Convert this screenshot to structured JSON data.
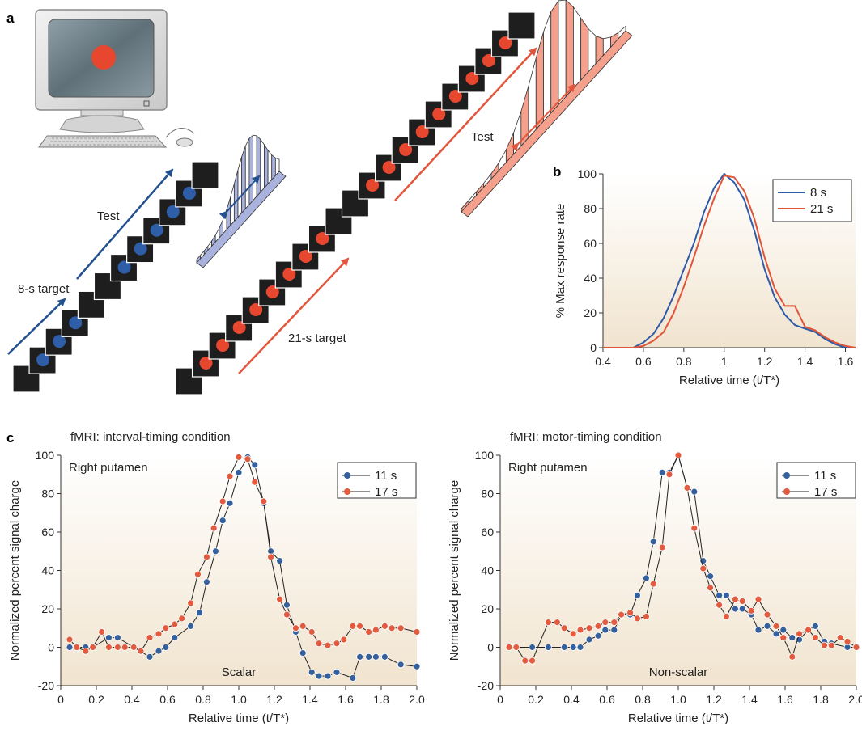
{
  "panels": {
    "a_letter": "a",
    "b_letter": "b",
    "c_letter": "c"
  },
  "schematic": {
    "left": {
      "label_test": "Test",
      "label_target": "8-s target",
      "dot_color": "#2f5ea8",
      "arrow_color": "#23508f",
      "curve_fill": "#a9b3dd",
      "curve_ticks": [
        "4",
        "6",
        "8",
        "10",
        "12"
      ],
      "screens": 12
    },
    "right": {
      "label_test": "Test",
      "label_target": "21-s target",
      "dot_color": "#e8472f",
      "arrow_color": "#e1563c",
      "curve_fill": "#f4a08c",
      "curve_ticks": [
        "11",
        "16",
        "21",
        "26",
        "31"
      ],
      "screens": 21
    },
    "monitor_dot_color": "#e8472f"
  },
  "chart_b": {
    "type": "line",
    "xlabel": "Relative time (t/T*)",
    "ylabel": "% Max response rate",
    "xlim": [
      0.4,
      1.65
    ],
    "ylim": [
      0,
      100
    ],
    "xticks": [
      "0.4",
      "0.6",
      "0.8",
      "1",
      "1.2",
      "1.4",
      "1.6"
    ],
    "yticks": [
      "0",
      "20",
      "40",
      "60",
      "80",
      "100"
    ],
    "legend_position": "top-right",
    "series": [
      {
        "name": "8 s",
        "color": "#2f5aa6",
        "points": [
          [
            0.4,
            0
          ],
          [
            0.55,
            0
          ],
          [
            0.6,
            3
          ],
          [
            0.65,
            8
          ],
          [
            0.7,
            17
          ],
          [
            0.75,
            30
          ],
          [
            0.8,
            45
          ],
          [
            0.85,
            60
          ],
          [
            0.9,
            78
          ],
          [
            0.95,
            92
          ],
          [
            1.0,
            100
          ],
          [
            1.05,
            95
          ],
          [
            1.1,
            85
          ],
          [
            1.15,
            67
          ],
          [
            1.2,
            45
          ],
          [
            1.25,
            29
          ],
          [
            1.3,
            19
          ],
          [
            1.35,
            13
          ],
          [
            1.4,
            11
          ],
          [
            1.45,
            9
          ],
          [
            1.5,
            5
          ],
          [
            1.55,
            2
          ],
          [
            1.6,
            0
          ],
          [
            1.65,
            0
          ]
        ]
      },
      {
        "name": "21 s",
        "color": "#e0553a",
        "points": [
          [
            0.4,
            0
          ],
          [
            0.55,
            0
          ],
          [
            0.6,
            1
          ],
          [
            0.65,
            4
          ],
          [
            0.7,
            9
          ],
          [
            0.75,
            20
          ],
          [
            0.8,
            35
          ],
          [
            0.85,
            52
          ],
          [
            0.9,
            70
          ],
          [
            0.95,
            86
          ],
          [
            1.0,
            99
          ],
          [
            1.05,
            98
          ],
          [
            1.1,
            90
          ],
          [
            1.15,
            74
          ],
          [
            1.2,
            52
          ],
          [
            1.25,
            34
          ],
          [
            1.3,
            24
          ],
          [
            1.35,
            24
          ],
          [
            1.4,
            12
          ],
          [
            1.45,
            10
          ],
          [
            1.5,
            6
          ],
          [
            1.55,
            3
          ],
          [
            1.6,
            1
          ],
          [
            1.65,
            0
          ]
        ]
      }
    ]
  },
  "chart_c": [
    {
      "type": "line",
      "title": "fMRI: interval-timing condition",
      "corner_label": "Right putamen",
      "bottom_label": "Scalar",
      "xlabel": "Relative time (t/T*)",
      "ylabel": "Normalized percent signal charge",
      "xlim": [
        0,
        2.0
      ],
      "ylim": [
        -20,
        100
      ],
      "xticks": [
        "0",
        "0.2",
        "0.4",
        "0.6",
        "0.8",
        "1.0",
        "1.2",
        "1.4",
        "1.6",
        "1.8",
        "2.0"
      ],
      "yticks": [
        "-20",
        "0",
        "20",
        "40",
        "60",
        "80",
        "100"
      ],
      "legend_position": "top-right",
      "series": [
        {
          "name": "11 s",
          "color": "#35609e",
          "points": [
            [
              0.05,
              0
            ],
            [
              0.09,
              0
            ],
            [
              0.14,
              0
            ],
            [
              0.18,
              0
            ],
            [
              0.27,
              5
            ],
            [
              0.32,
              5
            ],
            [
              0.41,
              0
            ],
            [
              0.5,
              -5
            ],
            [
              0.55,
              -2
            ],
            [
              0.59,
              0
            ],
            [
              0.64,
              5
            ],
            [
              0.73,
              11
            ],
            [
              0.78,
              18
            ],
            [
              0.82,
              34
            ],
            [
              0.87,
              50
            ],
            [
              0.91,
              66
            ],
            [
              0.95,
              75
            ],
            [
              1.0,
              91
            ],
            [
              1.05,
              99
            ],
            [
              1.09,
              95
            ],
            [
              1.14,
              75
            ],
            [
              1.18,
              50
            ],
            [
              1.23,
              45
            ],
            [
              1.27,
              22
            ],
            [
              1.32,
              8
            ],
            [
              1.36,
              -3
            ],
            [
              1.41,
              -13
            ],
            [
              1.45,
              -15
            ],
            [
              1.5,
              -15
            ],
            [
              1.55,
              -13
            ],
            [
              1.64,
              -16
            ],
            [
              1.68,
              -5
            ],
            [
              1.73,
              -5
            ],
            [
              1.77,
              -5
            ],
            [
              1.82,
              -5
            ],
            [
              1.91,
              -9
            ],
            [
              2.0,
              -10
            ]
          ]
        },
        {
          "name": "17 s",
          "color": "#e35b3e",
          "points": [
            [
              0.05,
              4
            ],
            [
              0.09,
              0
            ],
            [
              0.14,
              -2
            ],
            [
              0.18,
              0
            ],
            [
              0.23,
              8
            ],
            [
              0.27,
              0
            ],
            [
              0.32,
              0
            ],
            [
              0.36,
              0
            ],
            [
              0.41,
              0
            ],
            [
              0.45,
              -2
            ],
            [
              0.5,
              5
            ],
            [
              0.55,
              7
            ],
            [
              0.59,
              10
            ],
            [
              0.64,
              12
            ],
            [
              0.68,
              15
            ],
            [
              0.73,
              23
            ],
            [
              0.77,
              38
            ],
            [
              0.82,
              47
            ],
            [
              0.86,
              62
            ],
            [
              0.91,
              76
            ],
            [
              0.95,
              89
            ],
            [
              1.0,
              99
            ],
            [
              1.05,
              98
            ],
            [
              1.09,
              86
            ],
            [
              1.14,
              76
            ],
            [
              1.18,
              47
            ],
            [
              1.23,
              25
            ],
            [
              1.27,
              17
            ],
            [
              1.32,
              10
            ],
            [
              1.36,
              11
            ],
            [
              1.41,
              8
            ],
            [
              1.45,
              2
            ],
            [
              1.5,
              1
            ],
            [
              1.55,
              2
            ],
            [
              1.59,
              4
            ],
            [
              1.64,
              11
            ],
            [
              1.68,
              11
            ],
            [
              1.73,
              8
            ],
            [
              1.77,
              9
            ],
            [
              1.82,
              11
            ],
            [
              1.86,
              10
            ],
            [
              1.91,
              10
            ],
            [
              2.0,
              8
            ]
          ]
        }
      ]
    },
    {
      "type": "line",
      "title": "fMRI: motor-timing condition",
      "corner_label": "Right putamen",
      "bottom_label": "Non-scalar",
      "xlabel": "Relative time (t/T*)",
      "ylabel": "Normalized percent signal charge",
      "xlim": [
        0,
        2.0
      ],
      "ylim": [
        -20,
        100
      ],
      "xticks": [
        "0",
        "0.2",
        "0.4",
        "0.6",
        "0.8",
        "1.0",
        "1.2",
        "1.4",
        "1.6",
        "1.8",
        "2.0"
      ],
      "yticks": [
        "-20",
        "0",
        "20",
        "40",
        "60",
        "80",
        "100"
      ],
      "legend_position": "top-right",
      "series": [
        {
          "name": "11 s",
          "color": "#35609e",
          "points": [
            [
              0.05,
              0
            ],
            [
              0.09,
              0
            ],
            [
              0.18,
              0
            ],
            [
              0.27,
              0
            ],
            [
              0.36,
              0
            ],
            [
              0.41,
              0
            ],
            [
              0.45,
              0
            ],
            [
              0.5,
              4
            ],
            [
              0.55,
              6
            ],
            [
              0.59,
              9
            ],
            [
              0.64,
              9
            ],
            [
              0.68,
              17
            ],
            [
              0.73,
              17
            ],
            [
              0.77,
              27
            ],
            [
              0.82,
              36
            ],
            [
              0.86,
              55
            ],
            [
              0.91,
              91
            ],
            [
              0.95,
              91
            ],
            [
              1.0,
              100
            ],
            [
              1.05,
              83
            ],
            [
              1.09,
              81
            ],
            [
              1.14,
              45
            ],
            [
              1.18,
              37
            ],
            [
              1.23,
              27
            ],
            [
              1.27,
              27
            ],
            [
              1.32,
              20
            ],
            [
              1.36,
              20
            ],
            [
              1.41,
              17
            ],
            [
              1.45,
              9
            ],
            [
              1.5,
              11
            ],
            [
              1.55,
              7
            ],
            [
              1.59,
              9
            ],
            [
              1.64,
              5
            ],
            [
              1.68,
              4
            ],
            [
              1.73,
              9
            ],
            [
              1.77,
              11
            ],
            [
              1.82,
              3
            ],
            [
              1.86,
              2
            ],
            [
              1.95,
              0
            ],
            [
              2.0,
              0
            ]
          ]
        },
        {
          "name": "17 s",
          "color": "#e35b3e",
          "points": [
            [
              0.05,
              0
            ],
            [
              0.09,
              0
            ],
            [
              0.14,
              -7
            ],
            [
              0.18,
              -7
            ],
            [
              0.27,
              13
            ],
            [
              0.32,
              13
            ],
            [
              0.36,
              10
            ],
            [
              0.41,
              7
            ],
            [
              0.45,
              9
            ],
            [
              0.5,
              10
            ],
            [
              0.55,
              11
            ],
            [
              0.59,
              13
            ],
            [
              0.64,
              13
            ],
            [
              0.68,
              17
            ],
            [
              0.73,
              18
            ],
            [
              0.77,
              15
            ],
            [
              0.82,
              16
            ],
            [
              0.86,
              33
            ],
            [
              0.91,
              52
            ],
            [
              0.95,
              90
            ],
            [
              1.0,
              100
            ],
            [
              1.05,
              83
            ],
            [
              1.09,
              62
            ],
            [
              1.14,
              41
            ],
            [
              1.18,
              31
            ],
            [
              1.23,
              22
            ],
            [
              1.27,
              16
            ],
            [
              1.32,
              25
            ],
            [
              1.36,
              24
            ],
            [
              1.41,
              19
            ],
            [
              1.45,
              25
            ],
            [
              1.5,
              17
            ],
            [
              1.55,
              11
            ],
            [
              1.59,
              5
            ],
            [
              1.64,
              -5
            ],
            [
              1.68,
              7
            ],
            [
              1.73,
              9
            ],
            [
              1.77,
              5
            ],
            [
              1.82,
              1
            ],
            [
              1.86,
              1
            ],
            [
              1.91,
              5
            ],
            [
              1.95,
              3
            ],
            [
              2.0,
              0
            ]
          ]
        }
      ]
    }
  ]
}
